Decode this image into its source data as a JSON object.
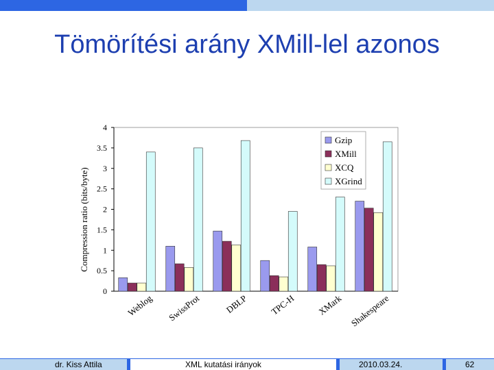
{
  "slide": {
    "title": "Tömörítési arány XMill-lel azonos"
  },
  "footer": {
    "author": "dr. Kiss Attila",
    "topic": "XML kutatási irányok",
    "date": "2010.03.24.",
    "page": "62"
  },
  "colors": {
    "top_dark": "#2d66e3",
    "top_light": "#bcd7ef",
    "title": "#1d3fb0"
  },
  "chart_data": {
    "type": "bar",
    "ylabel": "Compression ratio (bits/byte)",
    "xlabel": "",
    "ylim": [
      0,
      4
    ],
    "yticks": [
      "0",
      "0.5",
      "1",
      "1.5",
      "2",
      "2.5",
      "3",
      "3.5",
      "4"
    ],
    "categories": [
      "Weblog",
      "SwissProt",
      "DBLP",
      "TPC-H",
      "XMark",
      "Shakespeare"
    ],
    "legend_position": "top-right",
    "grid": false,
    "series": [
      {
        "name": "Gzip",
        "color": "#9a9aee",
        "values": [
          0.33,
          1.1,
          1.47,
          0.75,
          1.08,
          2.2
        ]
      },
      {
        "name": "XMill",
        "color": "#8b2f5a",
        "values": [
          0.2,
          0.67,
          1.22,
          0.38,
          0.65,
          2.03
        ]
      },
      {
        "name": "XCQ",
        "color": "#ffffd0",
        "values": [
          0.2,
          0.58,
          1.13,
          0.35,
          0.62,
          1.92
        ]
      },
      {
        "name": "XGrind",
        "color": "#d4fbfb",
        "values": [
          3.4,
          3.5,
          3.68,
          1.95,
          2.3,
          3.65
        ]
      }
    ]
  }
}
